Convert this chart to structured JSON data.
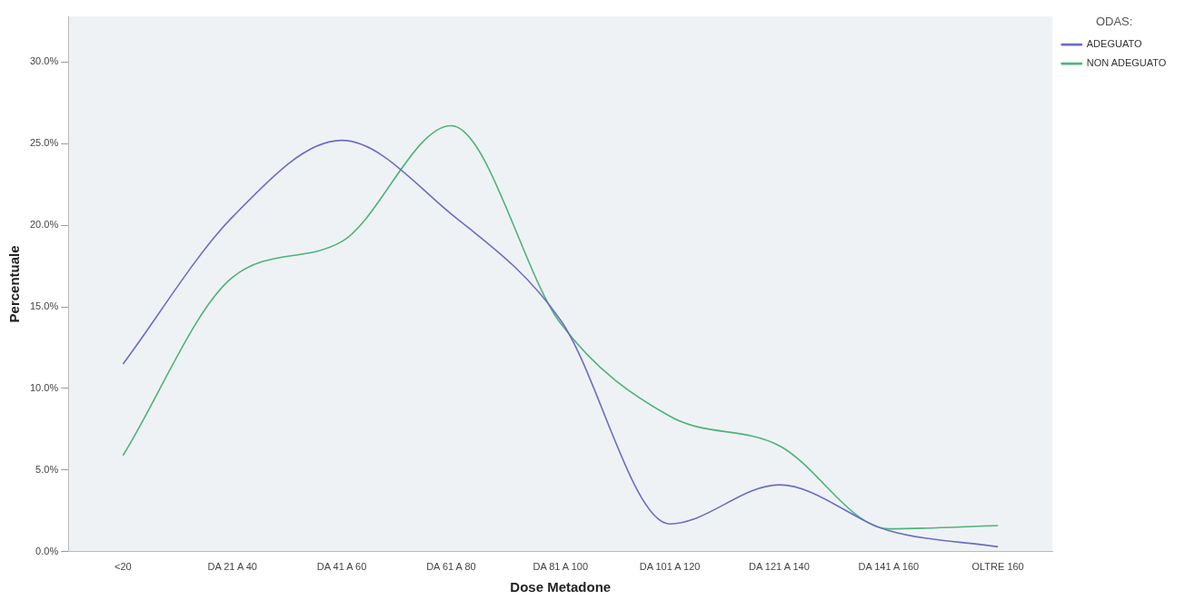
{
  "chart_data": {
    "type": "line",
    "xlabel": "Dose Metadone",
    "ylabel": "Percentuale",
    "legend_title": "ODAS:",
    "legend": "top right",
    "grid": false,
    "marker": "none",
    "line_style": "solid",
    "categories": [
      "<20",
      "DA 21 A 40",
      "DA 41 A 60",
      "DA 61 A 80",
      "DA 81 A 100",
      "DA 101 A 120",
      "DA 121 A 140",
      "DA 141 A 160",
      "OLTRE 160"
    ],
    "ylim": [
      0,
      32.8
    ],
    "yticks": [
      {
        "value": 0,
        "label": "0.0%"
      },
      {
        "value": 5,
        "label": "5.0%"
      },
      {
        "value": 10,
        "label": "10.0%"
      },
      {
        "value": 15,
        "label": "15.0%"
      },
      {
        "value": 20,
        "label": "20.0%"
      },
      {
        "value": 25,
        "label": "25.0%"
      },
      {
        "value": 30,
        "label": "30.0%"
      }
    ],
    "series": [
      {
        "name": "ADEGUATO",
        "color": "#6a6ec4",
        "values": [
          11.5,
          20.5,
          25.2,
          20.7,
          14.2,
          1.7,
          4.1,
          1.3,
          0.3
        ]
      },
      {
        "name": "NON ADEGUATO",
        "color": "#4fb37a",
        "values": [
          5.9,
          16.8,
          19.0,
          26.1,
          14.0,
          8.3,
          6.5,
          1.4,
          1.6
        ]
      }
    ]
  }
}
